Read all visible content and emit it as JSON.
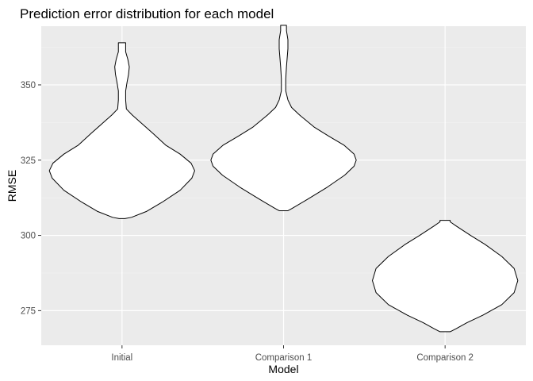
{
  "chart_data": {
    "type": "violin",
    "title": "Prediction error distribution for each model",
    "xlabel": "Model",
    "ylabel": "RMSE",
    "categories": [
      "Initial",
      "Comparison 1",
      "Comparison 2"
    ],
    "ylim": [
      263.5,
      369.5
    ],
    "yticks": [
      275,
      300,
      325,
      350
    ],
    "grid": true,
    "legend": "none",
    "colors": {
      "panel": "#ebebeb",
      "grid_major": "#ffffff",
      "grid_minor": "#f4f4f4",
      "violin_fill": "#ffffff",
      "violin_stroke": "#000000",
      "tick": "#333333"
    },
    "series": [
      {
        "category": "Initial",
        "min": 305.6,
        "max": 364.0,
        "profile": [
          [
            305.6,
            0.04
          ],
          [
            306,
            0.13
          ],
          [
            308,
            0.34
          ],
          [
            311,
            0.55
          ],
          [
            315,
            0.8
          ],
          [
            319,
            0.96
          ],
          [
            321.5,
            1.0
          ],
          [
            324,
            0.95
          ],
          [
            327,
            0.8
          ],
          [
            330,
            0.6
          ],
          [
            334,
            0.42
          ],
          [
            337,
            0.28
          ],
          [
            340,
            0.14
          ],
          [
            342,
            0.06
          ],
          [
            345,
            0.05
          ],
          [
            348,
            0.05
          ],
          [
            351,
            0.07
          ],
          [
            353.5,
            0.09
          ],
          [
            356,
            0.1
          ],
          [
            358.5,
            0.08
          ],
          [
            361,
            0.05
          ],
          [
            363,
            0.05
          ],
          [
            364,
            0.05
          ]
        ]
      },
      {
        "category": "Comparison 1",
        "min": 308.2,
        "max": 369.8,
        "profile": [
          [
            308.2,
            0.06
          ],
          [
            309,
            0.12
          ],
          [
            312,
            0.33
          ],
          [
            316,
            0.6
          ],
          [
            320,
            0.84
          ],
          [
            323,
            0.97
          ],
          [
            325,
            1.0
          ],
          [
            327,
            0.97
          ],
          [
            330,
            0.83
          ],
          [
            333,
            0.62
          ],
          [
            336,
            0.42
          ],
          [
            340,
            0.22
          ],
          [
            342.5,
            0.11
          ],
          [
            345,
            0.06
          ],
          [
            348,
            0.03
          ],
          [
            352,
            0.03
          ],
          [
            356,
            0.04
          ],
          [
            359,
            0.05
          ],
          [
            362,
            0.06
          ],
          [
            365,
            0.06
          ],
          [
            368,
            0.04
          ],
          [
            369.8,
            0.04
          ]
        ]
      },
      {
        "category": "Comparison 2",
        "min": 268.0,
        "max": 305.0,
        "profile": [
          [
            268,
            0.07
          ],
          [
            269,
            0.15
          ],
          [
            271,
            0.3
          ],
          [
            273.5,
            0.52
          ],
          [
            277,
            0.78
          ],
          [
            281,
            0.95
          ],
          [
            285,
            1.0
          ],
          [
            289,
            0.95
          ],
          [
            293,
            0.78
          ],
          [
            297,
            0.55
          ],
          [
            300,
            0.35
          ],
          [
            303,
            0.16
          ],
          [
            304.5,
            0.07
          ],
          [
            305,
            0.07
          ]
        ]
      }
    ]
  }
}
